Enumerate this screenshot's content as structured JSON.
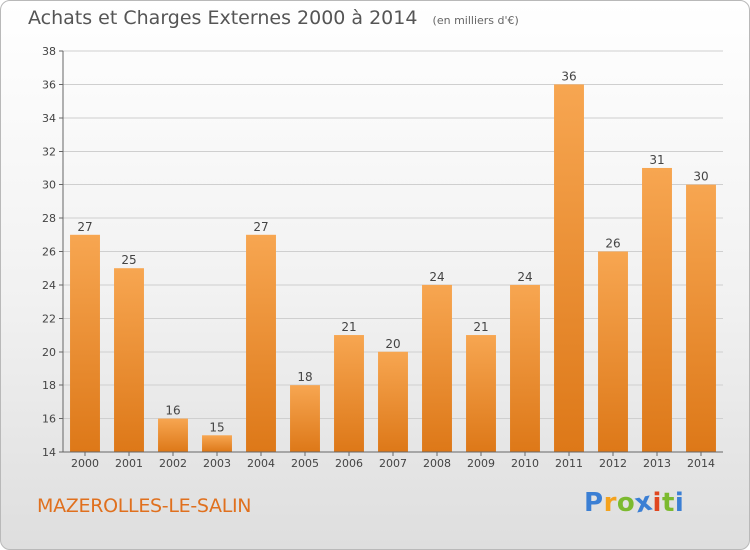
{
  "chart_data": {
    "type": "bar",
    "title": "Achats et Charges Externes 2000 à 2014",
    "subtitle": "(en milliers d'€)",
    "categories": [
      "2000",
      "2001",
      "2002",
      "2003",
      "2004",
      "2005",
      "2006",
      "2007",
      "2008",
      "2009",
      "2010",
      "2011",
      "2012",
      "2013",
      "2014"
    ],
    "values": [
      27,
      25,
      16,
      15,
      27,
      18,
      21,
      20,
      24,
      21,
      24,
      36,
      26,
      31,
      30
    ],
    "ylim": [
      14,
      38
    ],
    "yticks": [
      14,
      16,
      18,
      20,
      22,
      24,
      26,
      28,
      30,
      32,
      34,
      36,
      38
    ],
    "grid": true,
    "bar_color_top": "#f7a651",
    "bar_color_bottom": "#dd7818"
  },
  "footer": {
    "commune": "MAZEROLLES-LE-SALIN"
  },
  "brand": {
    "letters": [
      "P",
      "r",
      "o",
      "x",
      "i",
      "t",
      "i"
    ],
    "colors": [
      "#3b7fd4",
      "#f4a21d",
      "#7cba2f",
      "#3b7fd4",
      "#e0461f",
      "#7cba2f",
      "#3b7fd4"
    ]
  }
}
